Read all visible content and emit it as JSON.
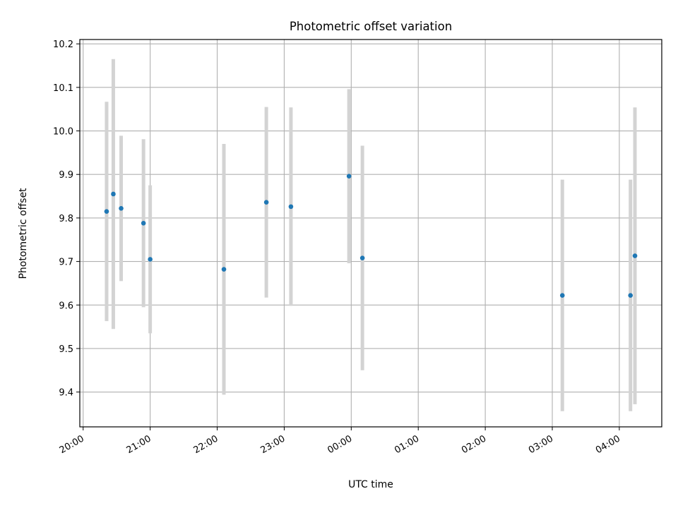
{
  "chart_data": {
    "type": "scatter",
    "title": "Photometric offset variation",
    "xlabel": "UTC time",
    "ylabel": "Photometric offset",
    "x_start_label": "20:00",
    "x_ticks": [
      "20:00",
      "21:00",
      "22:00",
      "23:00",
      "00:00",
      "01:00",
      "02:00",
      "03:00",
      "04:00"
    ],
    "x_range": [
      "19:57",
      "04:38"
    ],
    "ylim": [
      9.32,
      10.21
    ],
    "y_ticks": [
      9.4,
      9.5,
      9.6,
      9.7,
      9.8,
      9.9,
      10.0,
      10.1,
      10.2
    ],
    "y_tick_labels": [
      "9.4",
      "9.5",
      "9.6",
      "9.7",
      "9.8",
      "9.9",
      "10.0",
      "10.1",
      "10.2"
    ],
    "grid": true,
    "series": [
      {
        "marker_color": "#1f77b4",
        "errorbar_color": "#d3d3d3",
        "points": [
          {
            "x": "20:21",
            "y": 9.815,
            "yerr": 0.252
          },
          {
            "x": "20:27",
            "y": 9.855,
            "yerr": 0.31
          },
          {
            "x": "20:34",
            "y": 9.822,
            "yerr": 0.167
          },
          {
            "x": "20:54",
            "y": 9.788,
            "yerr": 0.193
          },
          {
            "x": "21:00",
            "y": 9.705,
            "yerr": 0.17
          },
          {
            "x": "22:06",
            "y": 9.682,
            "yerr": 0.288
          },
          {
            "x": "22:44",
            "y": 9.836,
            "yerr": 0.219
          },
          {
            "x": "23:06",
            "y": 9.826,
            "yerr": 0.228
          },
          {
            "x": "23:58",
            "y": 9.896,
            "yerr": 0.2
          },
          {
            "x": "00:10",
            "y": 9.708,
            "yerr": 0.258
          },
          {
            "x": "03:09",
            "y": 9.622,
            "yerr": 0.266
          },
          {
            "x": "04:10",
            "y": 9.622,
            "yerr": 0.266
          },
          {
            "x": "04:14",
            "y": 9.713,
            "yerr": 0.341
          }
        ]
      }
    ]
  }
}
